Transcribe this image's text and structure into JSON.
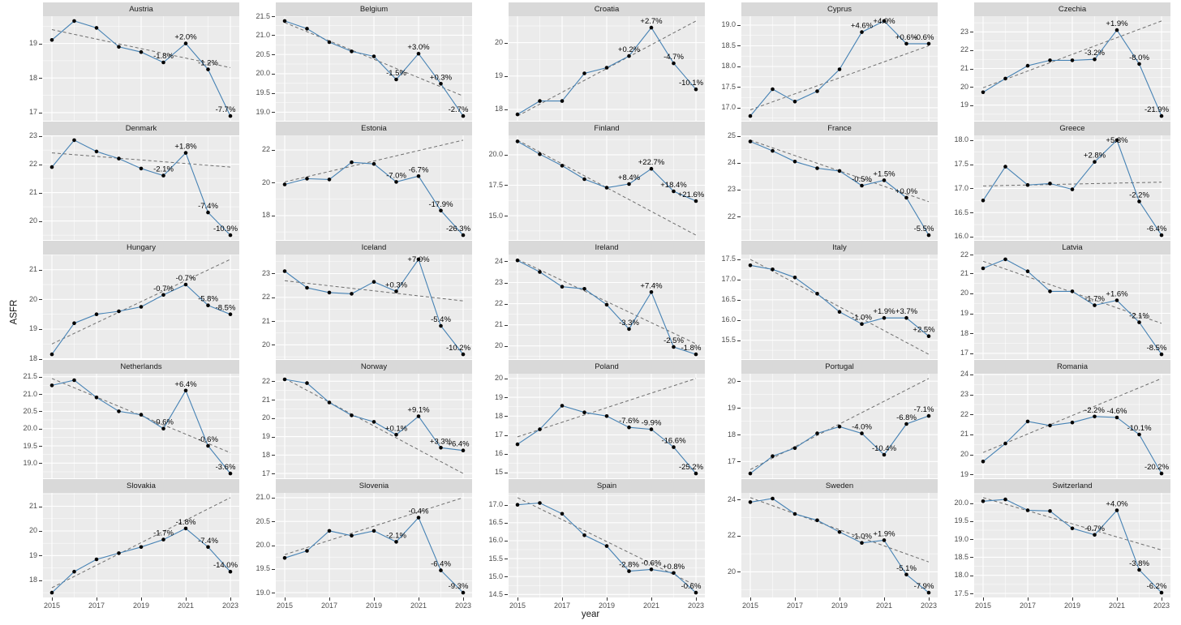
{
  "axis": {
    "y_title": "ASFR",
    "x_title": "year",
    "x_tick_labels": [
      "2015",
      "2017",
      "2019",
      "2021",
      "2023"
    ]
  },
  "colors": {
    "line": "#4682b4",
    "point": "#000000",
    "trend": "#6e6e6e",
    "panel_bg": "#ebebeb",
    "strip_bg": "#d9d9d9",
    "grid_major": "#ffffff",
    "grid_minor": "#f5f5f5",
    "axis_text": "#4d4d4d",
    "annotation_text": "#000000"
  },
  "chart_data": {
    "type": "line",
    "x": [
      2015,
      2016,
      2017,
      2018,
      2019,
      2020,
      2021,
      2022,
      2023
    ],
    "x_major_ticks": [
      2015,
      2017,
      2019,
      2021,
      2023
    ],
    "x_minor_ticks": [
      2016,
      2018,
      2020,
      2022
    ],
    "annotation_years": [
      2020,
      2021,
      2022,
      2023
    ],
    "layout": {
      "rows": 5,
      "cols": 5,
      "grid": true,
      "legend": "none",
      "x_range": [
        2015,
        2023
      ],
      "expansion": 0.05
    },
    "facets": [
      {
        "title": "Austria",
        "values": [
          19.1,
          19.65,
          19.45,
          18.9,
          18.75,
          18.45,
          19.0,
          18.25,
          16.9
        ],
        "trend": [
          19.4,
          18.3
        ],
        "y_ticks": [
          "17",
          "18",
          "19"
        ],
        "pct_labels": [
          "-1.8%",
          "+2.0%",
          "-1.2%",
          "-7.7%"
        ]
      },
      {
        "title": "Belgium",
        "values": [
          21.37,
          21.17,
          20.82,
          20.58,
          20.45,
          19.85,
          20.52,
          19.74,
          18.9
        ],
        "trend": [
          21.33,
          19.42
        ],
        "y_ticks": [
          "19.0",
          "19.5",
          "20.0",
          "20.5",
          "21.0",
          "21.5"
        ],
        "pct_labels": [
          "-1.5%",
          "+3.0%",
          "+0.3%",
          "-2.7%"
        ]
      },
      {
        "title": "Croatia",
        "values": [
          17.85,
          18.25,
          18.25,
          19.08,
          19.25,
          19.6,
          20.45,
          19.38,
          18.6
        ],
        "trend": [
          17.8,
          20.65
        ],
        "y_ticks": [
          "18",
          "19",
          "20"
        ],
        "pct_labels": [
          "+0.2%",
          "+2.7%",
          "-4.7%",
          "-10.1%"
        ]
      },
      {
        "title": "Cyprus",
        "values": [
          16.8,
          17.45,
          17.15,
          17.4,
          17.93,
          18.83,
          19.1,
          18.55,
          18.55
        ],
        "trend": [
          16.95,
          18.5
        ],
        "y_ticks": [
          "17.0",
          "17.5",
          "18.0",
          "18.5",
          "19.0"
        ],
        "pct_labels": [
          "+4.6%",
          "+4.9%",
          "+0.6%",
          "-0.6%"
        ]
      },
      {
        "title": "Czechia",
        "values": [
          19.7,
          20.45,
          21.15,
          21.45,
          21.45,
          21.5,
          23.1,
          21.25,
          18.4
        ],
        "trend": [
          19.95,
          23.6
        ],
        "y_ticks": [
          "19",
          "20",
          "21",
          "22",
          "23"
        ],
        "pct_labels": [
          "-3.2%",
          "+1.9%",
          "-8.0%",
          "-21.9%"
        ]
      },
      {
        "title": "Denmark",
        "values": [
          21.9,
          22.85,
          22.45,
          22.2,
          21.85,
          21.6,
          22.4,
          20.3,
          19.5
        ],
        "trend": [
          22.4,
          21.9
        ],
        "y_ticks": [
          "20",
          "21",
          "22",
          "23"
        ],
        "pct_labels": [
          "-2.1%",
          "+1.8%",
          "-7.4%",
          "-10.9%"
        ]
      },
      {
        "title": "Estonia",
        "values": [
          19.9,
          20.25,
          20.2,
          21.25,
          21.15,
          20.05,
          20.4,
          18.3,
          16.8
        ],
        "trend": [
          20.05,
          22.6
        ],
        "y_ticks": [
          "18",
          "20",
          "22"
        ],
        "pct_labels": [
          "-7.0%",
          "-6.7%",
          "-17.9%",
          "-26.3%"
        ]
      },
      {
        "title": "Finland",
        "values": [
          21.1,
          20.05,
          19.1,
          18.0,
          17.3,
          17.6,
          18.85,
          17.0,
          16.2
        ],
        "trend": [
          21.2,
          13.4
        ],
        "y_ticks": [
          "15.0",
          "17.5",
          "20.0"
        ],
        "pct_labels": [
          "+8.4%",
          "+22.7%",
          "+18.4%",
          "+21.6%"
        ]
      },
      {
        "title": "France",
        "values": [
          24.8,
          24.45,
          24.05,
          23.8,
          23.7,
          23.15,
          23.35,
          22.7,
          21.3
        ],
        "trend": [
          24.85,
          22.55
        ],
        "y_ticks": [
          "22",
          "23",
          "24",
          "25"
        ],
        "pct_labels": [
          "-0.5%",
          "+1.5%",
          "+0.0%",
          "-5.5%"
        ]
      },
      {
        "title": "Greece",
        "values": [
          16.75,
          17.45,
          17.07,
          17.1,
          16.98,
          17.55,
          18.0,
          16.73,
          16.03
        ],
        "trend": [
          17.05,
          17.13
        ],
        "y_ticks": [
          "16.0",
          "16.5",
          "17.0",
          "17.5",
          "18.0"
        ],
        "pct_labels": [
          "+2.8%",
          "+5.3%",
          "-2.2%",
          "-6.4%"
        ]
      },
      {
        "title": "Hungary",
        "values": [
          18.15,
          19.2,
          19.5,
          19.6,
          19.75,
          20.15,
          20.5,
          19.8,
          19.5
        ],
        "trend": [
          18.5,
          21.35
        ],
        "y_ticks": [
          "18",
          "19",
          "20",
          "21"
        ],
        "pct_labels": [
          "-0.7%",
          "-0.7%",
          "-5.8%",
          "-8.5%"
        ]
      },
      {
        "title": "Iceland",
        "values": [
          23.1,
          22.4,
          22.2,
          22.15,
          22.65,
          22.25,
          23.6,
          20.8,
          19.6
        ],
        "trend": [
          22.7,
          21.85
        ],
        "y_ticks": [
          "20",
          "21",
          "22",
          "23"
        ],
        "pct_labels": [
          "+0.3%",
          "+7.0%",
          "-5.4%",
          "-10.2%"
        ]
      },
      {
        "title": "Ireland",
        "values": [
          24.05,
          23.5,
          22.8,
          22.7,
          21.95,
          20.8,
          22.55,
          19.95,
          19.6
        ],
        "trend": [
          24.1,
          20.1
        ],
        "y_ticks": [
          "20",
          "21",
          "22",
          "23",
          "24"
        ],
        "pct_labels": [
          "-3.3%",
          "+7.4%",
          "-2.5%",
          "-1.8%"
        ]
      },
      {
        "title": "Italy",
        "values": [
          17.35,
          17.25,
          17.05,
          16.65,
          16.2,
          15.9,
          16.05,
          16.05,
          15.6
        ],
        "trend": [
          17.5,
          15.15
        ],
        "y_ticks": [
          "15.5",
          "16.0",
          "16.5",
          "17.0",
          "17.5"
        ],
        "pct_labels": [
          "-1.0%",
          "+1.9%",
          "+3.7%",
          "+2.5%"
        ]
      },
      {
        "title": "Latvia",
        "values": [
          21.25,
          21.7,
          21.1,
          20.1,
          20.1,
          19.4,
          19.65,
          18.55,
          16.95
        ],
        "trend": [
          21.6,
          18.5
        ],
        "y_ticks": [
          "17",
          "18",
          "19",
          "20",
          "21",
          "22"
        ],
        "pct_labels": [
          "-1.7%",
          "+1.6%",
          "-2.1%",
          "-8.5%"
        ]
      },
      {
        "title": "Netherlands",
        "values": [
          21.25,
          21.4,
          20.9,
          20.5,
          20.4,
          20.0,
          21.1,
          19.5,
          18.7
        ],
        "trend": [
          21.45,
          19.3
        ],
        "y_ticks": [
          "19.0",
          "19.5",
          "20.0",
          "20.5",
          "21.0",
          "21.5"
        ],
        "pct_labels": [
          "-0.6%",
          "+6.4%",
          "-0.6%",
          "-3.6%"
        ]
      },
      {
        "title": "Norway",
        "values": [
          22.1,
          21.9,
          20.85,
          20.15,
          19.8,
          19.1,
          20.1,
          18.4,
          18.25
        ],
        "trend": [
          22.15,
          17.0
        ],
        "y_ticks": [
          "17",
          "18",
          "19",
          "20",
          "21",
          "22"
        ],
        "pct_labels": [
          "+0.1%",
          "+9.1%",
          "+3.3%",
          "+6.4%"
        ]
      },
      {
        "title": "Poland",
        "values": [
          16.5,
          17.3,
          18.55,
          18.2,
          18.0,
          17.4,
          17.3,
          16.35,
          14.95
        ],
        "trend": [
          16.9,
          20.0
        ],
        "y_ticks": [
          "15",
          "16",
          "17",
          "18",
          "19",
          "20"
        ],
        "pct_labels": [
          "-7.6%",
          "-9.9%",
          "-16.6%",
          "-25.2%"
        ]
      },
      {
        "title": "Portugal",
        "values": [
          16.55,
          17.2,
          17.5,
          18.05,
          18.3,
          18.05,
          17.25,
          18.4,
          18.7
        ],
        "trend": [
          16.7,
          20.1
        ],
        "y_ticks": [
          "17",
          "18",
          "19",
          "20"
        ],
        "pct_labels": [
          "-4.0%",
          "-10.4%",
          "-6.8%",
          "-7.1%"
        ]
      },
      {
        "title": "Romania",
        "values": [
          19.65,
          20.55,
          21.65,
          21.45,
          21.6,
          21.9,
          21.85,
          21.0,
          19.05
        ],
        "trend": [
          20.1,
          23.8
        ],
        "y_ticks": [
          "19",
          "20",
          "21",
          "22",
          "23",
          "24"
        ],
        "pct_labels": [
          "-2.2%",
          "-4.6%",
          "-10.1%",
          "-20.2%"
        ]
      },
      {
        "title": "Slovakia",
        "values": [
          17.5,
          18.35,
          18.85,
          19.1,
          19.35,
          19.65,
          20.1,
          19.35,
          18.35
        ],
        "trend": [
          17.7,
          21.35
        ],
        "y_ticks": [
          "18",
          "19",
          "20",
          "21"
        ],
        "pct_labels": [
          "-1.7%",
          "-1.8%",
          "-7.4%",
          "-14.0%"
        ]
      },
      {
        "title": "Slovenia",
        "values": [
          19.73,
          19.88,
          20.3,
          20.2,
          20.3,
          20.07,
          20.58,
          19.47,
          19.0
        ],
        "trend": [
          19.8,
          21.0
        ],
        "y_ticks": [
          "19.0",
          "19.5",
          "20.0",
          "20.5",
          "21.0"
        ],
        "pct_labels": [
          "-2.1%",
          "-0.4%",
          "-6.4%",
          "-9.3%"
        ]
      },
      {
        "title": "Spain",
        "values": [
          17.0,
          17.05,
          16.75,
          16.15,
          15.85,
          15.15,
          15.2,
          15.1,
          14.55
        ],
        "trend": [
          17.2,
          14.75
        ],
        "y_ticks": [
          "14.5",
          "15.0",
          "15.5",
          "16.0",
          "16.5",
          "17.0"
        ],
        "pct_labels": [
          "-2.8%",
          "-0.6%",
          "+0.8%",
          "-0.6%"
        ]
      },
      {
        "title": "Sweden",
        "values": [
          23.85,
          24.05,
          23.2,
          22.85,
          22.2,
          21.6,
          21.75,
          19.85,
          18.85
        ],
        "trend": [
          24.1,
          20.55
        ],
        "y_ticks": [
          "20",
          "22",
          "24"
        ],
        "pct_labels": [
          "-1.0%",
          "+1.9%",
          "-5.1%",
          "-7.9%"
        ]
      },
      {
        "title": "Switzerland",
        "values": [
          20.05,
          20.1,
          19.8,
          19.78,
          19.3,
          19.12,
          19.8,
          18.15,
          17.52
        ],
        "trend": [
          20.15,
          18.7
        ],
        "y_ticks": [
          "17.5",
          "18.0",
          "18.5",
          "19.0",
          "19.5",
          "20.0"
        ],
        "pct_labels": [
          "-0.7%",
          "+4.0%",
          "-3.8%",
          "-6.2%"
        ]
      }
    ]
  }
}
